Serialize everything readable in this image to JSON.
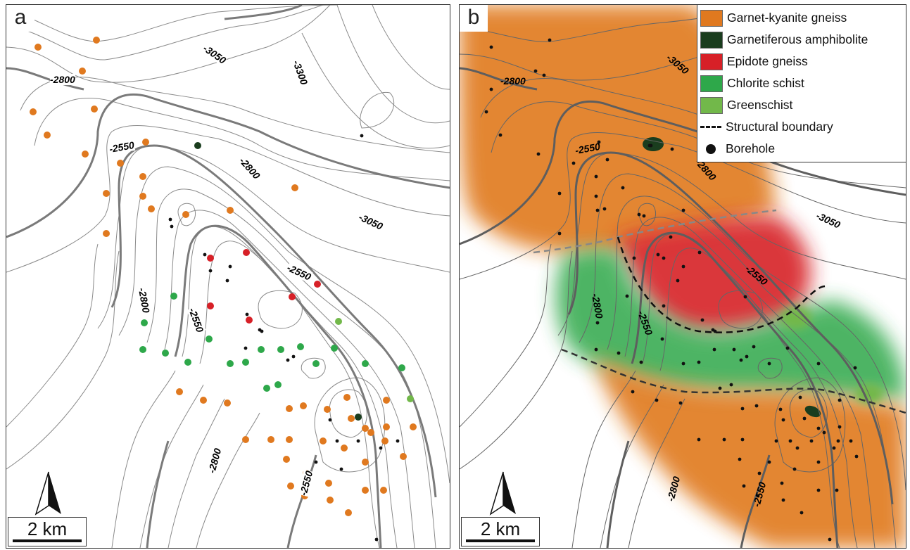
{
  "panels": [
    {
      "letter": "a",
      "scale_label": "2 km",
      "north_label": "N",
      "contour_labels": [
        "-2800",
        "-3050",
        "-3300",
        "-2550",
        "-2800",
        "-3050",
        "-2550",
        "-2800",
        "-2550",
        "-2800",
        "-2550"
      ]
    },
    {
      "letter": "b",
      "scale_label": "2 km",
      "north_label": "N",
      "contour_labels": [
        "-3050",
        "-2800",
        "-2550",
        "-2800",
        "-3050",
        "-2550",
        "-2800",
        "-2550",
        "-2800",
        "-2550"
      ]
    }
  ],
  "legend": {
    "items": [
      {
        "label": "Garnet-kyanite gneiss",
        "color": "#e0791f"
      },
      {
        "label": "Garnetiferous amphibolite",
        "color": "#1a3d1e"
      },
      {
        "label": "Epidote gneiss",
        "color": "#d72027"
      },
      {
        "label": "Chlorite schist",
        "color": "#2ea84a"
      },
      {
        "label": "Greenschist",
        "color": "#72b84a"
      }
    ],
    "boundary_label": "Structural boundary",
    "borehole_label": "Borehole"
  },
  "colors": {
    "contour": "#888888",
    "index_contour": "#7a7a7a",
    "borehole": "#111111"
  }
}
